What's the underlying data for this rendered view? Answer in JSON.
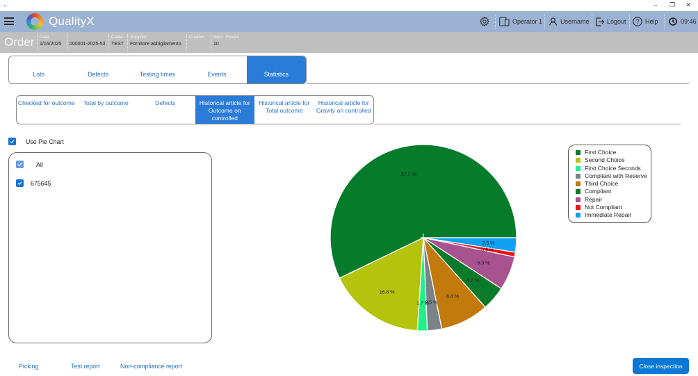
{
  "window": {
    "back_icon": "←",
    "minimize": "–",
    "restore": "❐",
    "close": "✕"
  },
  "header": {
    "app_name": "QualityX",
    "operator": "Operator 1",
    "username": "Username",
    "logout": "Logout",
    "help": "Help",
    "time": "09:46",
    "icons": [
      "menu-icon",
      "logo",
      "gear-icon",
      "device-icon",
      "user-icon",
      "logout-icon",
      "help-icon",
      "clock-icon"
    ],
    "background_color": "#9cb2d2"
  },
  "order_bar": {
    "title": "Order",
    "fields": [
      {
        "label": "Date",
        "value": "1/16/2025"
      },
      {
        "label": "",
        "value": "000001-2025-53"
      },
      {
        "label": "Code",
        "value": "TEST"
      },
      {
        "label": "Supplier",
        "value": "Fornitore abbigliamento"
      },
      {
        "label": "Custom",
        "value": ""
      },
      {
        "label": "Num. Pieces",
        "value": "10"
      }
    ]
  },
  "main_tabs": {
    "items": [
      {
        "label": "Lots"
      },
      {
        "label": "Defects"
      },
      {
        "label": "Testing times"
      },
      {
        "label": "Events"
      },
      {
        "label": "Statistics"
      }
    ],
    "active_index": 4
  },
  "sub_tabs": {
    "items": [
      {
        "label": "Checked for outcome"
      },
      {
        "label": "Total by outcome"
      },
      {
        "label": "Defects"
      },
      {
        "label": "Historical article for\nOutcome on\ncontrolled"
      },
      {
        "label": "Historical article for\nTotal outcome"
      },
      {
        "label": "Historical article for\nGravity on controlled"
      }
    ],
    "active_index": 3
  },
  "options": {
    "use_pie_chart_label": "Use Pie Chart",
    "use_pie_chart_checked": true
  },
  "filter_list": {
    "items": [
      {
        "label": "All",
        "checked": true
      },
      {
        "label": "675645",
        "checked": true
      }
    ]
  },
  "footer": {
    "links": [
      "Picking",
      "Test report",
      "Non-compliance report"
    ],
    "close_button": "Close inspection"
  },
  "accent_color": "#2b7bd8",
  "chart_data": {
    "type": "pie",
    "title": "",
    "labels": [
      "First Choice",
      "Second Choice",
      "First Choice Seconds",
      "Compliant with Reserve",
      "Third Choice",
      "Compliant",
      "Repair",
      "Not Compliant",
      "Immediate Repair"
    ],
    "values": [
      57.1,
      16.8,
      1.7,
      2.5,
      8.4,
      4.2,
      5.9,
      0.8,
      2.5
    ],
    "value_labels": [
      "57.1 %",
      "16.8 %",
      "1.7 %",
      "2.5 %",
      "8.4 %",
      "4.2 %",
      "5.9 %",
      "0.8 %",
      "2.5 %"
    ],
    "colors": [
      "#067c2b",
      "#b4c30b",
      "#1ef08a",
      "#7b8389",
      "#c27a0c",
      "#0b7a2a",
      "#a8528f",
      "#f01212",
      "#12a0f0"
    ],
    "unit": "%",
    "start_angle": "3 o'clock",
    "direction": "counter-clockwise",
    "legend_position": "right"
  }
}
